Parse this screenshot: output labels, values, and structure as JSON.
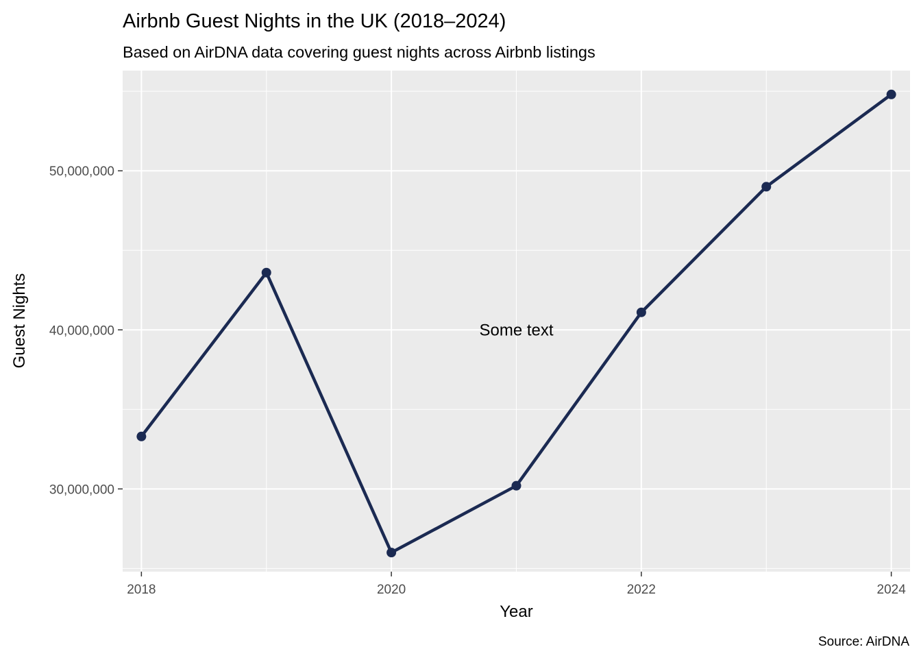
{
  "chart_data": {
    "type": "line",
    "title": "Airbnb Guest Nights in the UK (2018–2024)",
    "subtitle": "Based on AirDNA data covering guest nights across Airbnb listings",
    "xlabel": "Year",
    "ylabel": "Guest Nights",
    "caption": "Source: AirDNA",
    "x": [
      2018,
      2019,
      2020,
      2021,
      2022,
      2023,
      2024
    ],
    "series": [
      {
        "values": [
          33300000,
          43600000,
          26000000,
          30200000,
          41100000,
          49000000,
          54800000
        ]
      }
    ],
    "xlim": [
      2017.85,
      2024.15
    ],
    "ylim": [
      24800000,
      56300000
    ],
    "x_ticks": [
      2018,
      2020,
      2022,
      2024
    ],
    "x_tick_labels": [
      "2018",
      "2020",
      "2022",
      "2024"
    ],
    "y_ticks": [
      30000000,
      40000000,
      50000000
    ],
    "y_tick_labels": [
      "30,000,000",
      "40,000,000",
      "50,000,000"
    ],
    "annotation": {
      "text": "Some text",
      "x": 2021,
      "y": 40000000
    },
    "grid": true,
    "legend": "none",
    "colors": {
      "line": "#1b2a52",
      "panel_background": "#ebebeb",
      "grid": "#ffffff"
    }
  }
}
